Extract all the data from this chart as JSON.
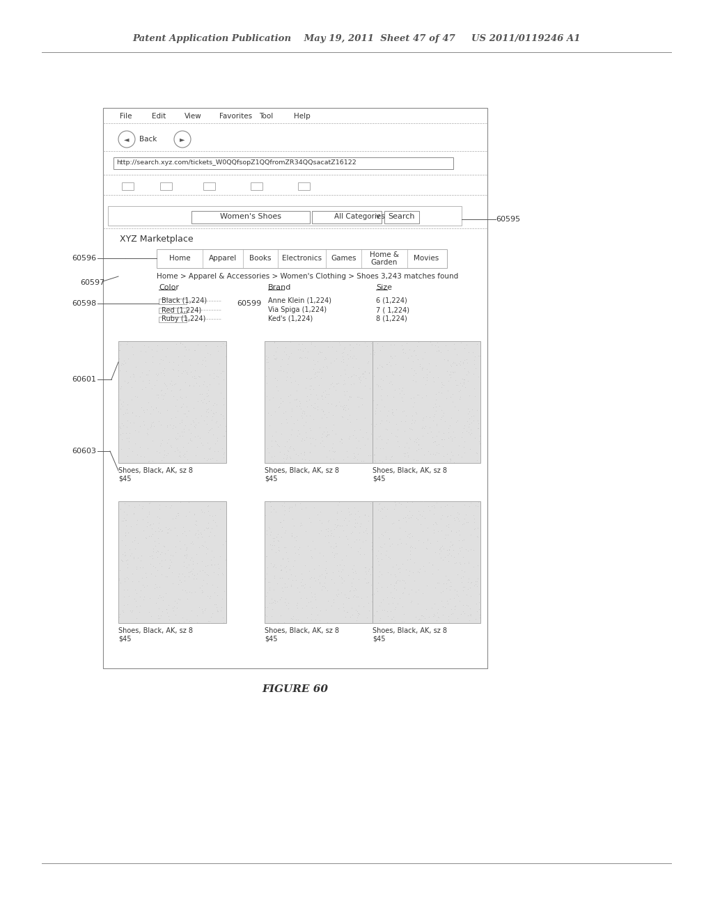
{
  "background_color": "#ffffff",
  "header_text": "Patent Application Publication    May 19, 2011  Sheet 47 of 47     US 2011/0119246 A1",
  "figure_caption": "FIGURE 60",
  "browser": {
    "menu_items": [
      "File",
      "Edit",
      "View",
      "Favorites",
      "Tool",
      "Help"
    ],
    "url": "http://search.xyz.com/tickets_W0QQfsopZ1QQfromZR34QQsacatZ16122",
    "search_text": "Women's Shoes",
    "search_cat": "All Categories",
    "search_btn": "Search",
    "site_name": "XYZ Marketplace",
    "nav_tabs": [
      "Home",
      "Apparel",
      "Books",
      "Electronics",
      "Games",
      "Home &\nGarden",
      "Movies"
    ],
    "breadcrumb": "Home > Apparel & Accessories > Women's Clothing > Shoes 3,243 matches found",
    "color_label": "Color",
    "color_items": [
      "Black (1,224)",
      "Red (1,224)",
      "Ruby (1,224)"
    ],
    "brand_label": "Brand",
    "brand_items": [
      "Anne Klein (1,224)",
      "Via Spiga (1,224)",
      "Ked's (1,224)"
    ],
    "size_label": "Size",
    "size_items": [
      "6 (1,224)",
      "7 ( 1,224)",
      "8 (1,224)"
    ],
    "product_label": "Shoes, Black, AK, sz 8",
    "product_price": "$45",
    "ref_labels": [
      "60595",
      "60596",
      "60597",
      "60598",
      "60599",
      "60601",
      "60603"
    ]
  }
}
